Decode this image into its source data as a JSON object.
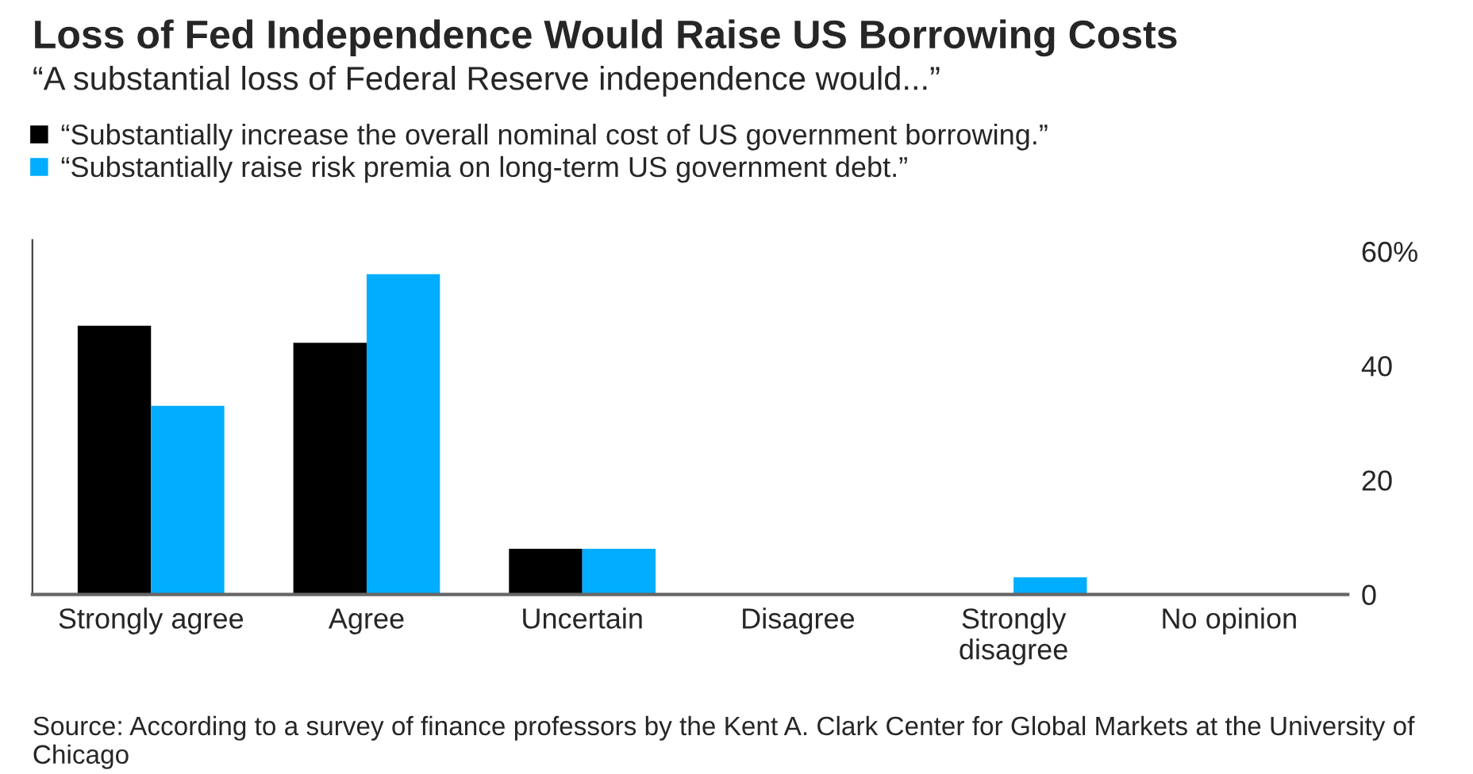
{
  "chart_data": {
    "type": "bar",
    "title": "Loss of Fed Independence Would Raise US Borrowing Costs",
    "subtitle": "“A substantial loss of Federal Reserve independence would...”",
    "categories": [
      "Strongly agree",
      "Agree",
      "Uncertain",
      "Disagree",
      "Strongly\ndisagree",
      "No opinion"
    ],
    "series": [
      {
        "name": "“Substantially increase the overall nominal cost of US government borrowing.”",
        "color": "#000000",
        "values": [
          47,
          44,
          8,
          0,
          0,
          0
        ]
      },
      {
        "name": "“Substantially raise risk premia on long-term US government debt.”",
        "color": "#00adff",
        "values": [
          33,
          56,
          8,
          0,
          3,
          0
        ]
      }
    ],
    "ylim": [
      0,
      62
    ],
    "yticks": [
      0,
      20,
      40,
      {
        "value": 60,
        "label": "60%"
      }
    ],
    "grid": false,
    "legend": "top left",
    "annotations": [
      "Source: According to a survey of finance professors by the Kent A. Clark Center for Global Markets at the University of Chicago"
    ]
  }
}
